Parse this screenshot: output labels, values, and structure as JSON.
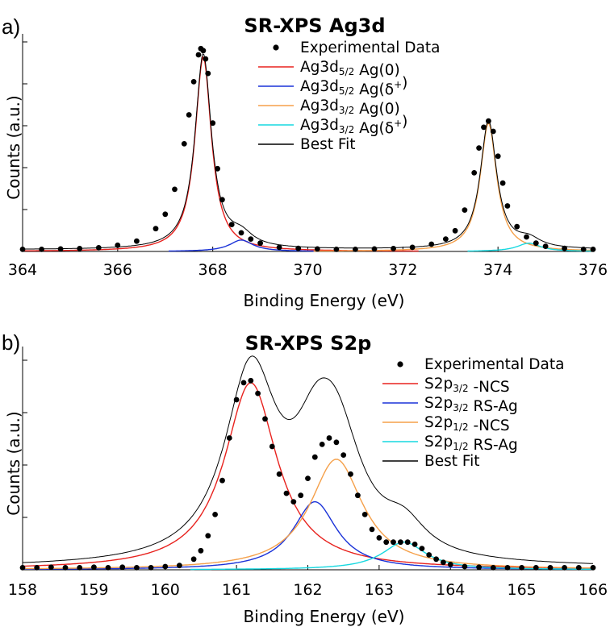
{
  "chart_data": [
    {
      "panel_label": "a)",
      "type": "line",
      "title": "SR-XPS Ag3d",
      "xlabel": "Binding Energy (eV)",
      "ylabel": "Counts (a.u.)",
      "xlim": [
        364,
        376
      ],
      "ylim": [
        0,
        1.02
      ],
      "x_ticks": [
        "364",
        "366",
        "368",
        "370",
        "372",
        "374",
        "376"
      ],
      "grid": false,
      "legend_position": "top-center",
      "legend": [
        {
          "kind": "dot",
          "color": "#000000",
          "parts": [
            {
              "t": "Experimental Data"
            }
          ]
        },
        {
          "kind": "line",
          "color": "#e8221e",
          "parts": [
            {
              "t": "Ag3d"
            },
            {
              "t": "5/2",
              "sub": true
            },
            {
              "t": " Ag(0)"
            }
          ]
        },
        {
          "kind": "line",
          "color": "#1a32d8",
          "parts": [
            {
              "t": "Ag3d"
            },
            {
              "t": "5/2",
              "sub": true
            },
            {
              "t": " Ag(δ"
            },
            {
              "t": "+",
              "sup": true
            },
            {
              "t": ")"
            }
          ]
        },
        {
          "kind": "line",
          "color": "#f5a04a",
          "parts": [
            {
              "t": "Ag3d"
            },
            {
              "t": "3/2",
              "sub": true
            },
            {
              "t": " Ag(0)"
            }
          ]
        },
        {
          "kind": "line",
          "color": "#16d8e0",
          "parts": [
            {
              "t": "Ag3d"
            },
            {
              "t": "3/2",
              "sub": true
            },
            {
              "t": " Ag(δ"
            },
            {
              "t": "+",
              "sup": true
            },
            {
              "t": ")"
            }
          ]
        },
        {
          "kind": "line",
          "color": "#000000",
          "parts": [
            {
              "t": "Best Fit"
            }
          ]
        }
      ],
      "series": [
        {
          "color": "#e8221e",
          "peak": {
            "center": 367.8,
            "height": 0.94,
            "fwhm": 0.42
          }
        },
        {
          "color": "#1a32d8",
          "peak": {
            "center": 368.6,
            "height": 0.055,
            "fwhm": 0.6
          }
        },
        {
          "color": "#f5a04a",
          "peak": {
            "center": 373.8,
            "height": 0.62,
            "fwhm": 0.42
          }
        },
        {
          "color": "#16d8e0",
          "peak": {
            "center": 374.65,
            "height": 0.04,
            "fwhm": 0.6
          }
        }
      ],
      "experimental": {
        "x": [
          364.0,
          364.4,
          364.8,
          365.2,
          365.6,
          366.0,
          366.4,
          366.8,
          367.0,
          367.2,
          367.4,
          367.5,
          367.6,
          367.7,
          367.75,
          367.8,
          367.85,
          367.9,
          368.0,
          368.1,
          368.2,
          368.4,
          368.6,
          368.8,
          369.0,
          369.4,
          369.8,
          370.2,
          370.6,
          371.0,
          371.4,
          371.8,
          372.2,
          372.6,
          372.9,
          373.1,
          373.3,
          373.5,
          373.6,
          373.7,
          373.8,
          373.9,
          374.0,
          374.1,
          374.2,
          374.4,
          374.6,
          374.8,
          375.0,
          375.4,
          375.8,
          376.0
        ],
        "y": [
          0.01,
          0.01,
          0.012,
          0.014,
          0.018,
          0.03,
          0.05,
          0.11,
          0.18,
          0.3,
          0.52,
          0.66,
          0.82,
          0.95,
          0.98,
          0.97,
          0.93,
          0.86,
          0.62,
          0.4,
          0.25,
          0.13,
          0.09,
          0.06,
          0.04,
          0.02,
          0.015,
          0.012,
          0.01,
          0.01,
          0.012,
          0.014,
          0.02,
          0.035,
          0.06,
          0.1,
          0.2,
          0.38,
          0.5,
          0.6,
          0.63,
          0.58,
          0.46,
          0.33,
          0.22,
          0.12,
          0.07,
          0.04,
          0.025,
          0.015,
          0.01,
          0.01
        ]
      }
    },
    {
      "panel_label": "b)",
      "type": "line",
      "title": "SR-XPS S2p",
      "xlabel": "Binding Energy (eV)",
      "ylabel": "Counts (a.u.)",
      "xlim": [
        158,
        166
      ],
      "ylim": [
        0,
        1.02
      ],
      "x_ticks": [
        "158",
        "159",
        "160",
        "161",
        "162",
        "163",
        "164",
        "165",
        "166"
      ],
      "grid": false,
      "legend_position": "top-right",
      "legend": [
        {
          "kind": "dot",
          "color": "#000000",
          "parts": [
            {
              "t": "Experimental Data"
            }
          ]
        },
        {
          "kind": "line",
          "color": "#e8221e",
          "parts": [
            {
              "t": "S2p"
            },
            {
              "t": "3/2",
              "sub": true
            },
            {
              "t": " -NCS"
            }
          ]
        },
        {
          "kind": "line",
          "color": "#1a32d8",
          "parts": [
            {
              "t": "S2p"
            },
            {
              "t": "3/2",
              "sub": true
            },
            {
              "t": " RS-Ag"
            }
          ]
        },
        {
          "kind": "line",
          "color": "#f5a04a",
          "parts": [
            {
              "t": "S2p"
            },
            {
              "t": "1/2",
              "sub": true
            },
            {
              "t": " -NCS"
            }
          ]
        },
        {
          "kind": "line",
          "color": "#16d8e0",
          "parts": [
            {
              "t": "S2p"
            },
            {
              "t": "1/2",
              "sub": true
            },
            {
              "t": " RS-Ag"
            }
          ]
        },
        {
          "kind": "line",
          "color": "#000000",
          "parts": [
            {
              "t": "Best Fit"
            }
          ]
        }
      ],
      "series": [
        {
          "color": "#e8221e",
          "peak": {
            "center": 161.2,
            "height": 0.88,
            "fwhm": 0.9
          }
        },
        {
          "color": "#1a32d8",
          "peak": {
            "center": 162.1,
            "height": 0.32,
            "fwhm": 0.75
          }
        },
        {
          "color": "#f5a04a",
          "peak": {
            "center": 162.4,
            "height": 0.52,
            "fwhm": 0.9
          }
        },
        {
          "color": "#16d8e0",
          "peak": {
            "center": 163.35,
            "height": 0.13,
            "fwhm": 0.75
          }
        }
      ],
      "experimental": {
        "x": [
          158.0,
          158.2,
          158.4,
          158.6,
          158.8,
          159.0,
          159.2,
          159.4,
          159.6,
          159.8,
          160.0,
          160.2,
          160.4,
          160.5,
          160.6,
          160.7,
          160.8,
          160.9,
          161.0,
          161.1,
          161.2,
          161.3,
          161.4,
          161.5,
          161.6,
          161.7,
          161.8,
          161.9,
          162.0,
          162.1,
          162.2,
          162.3,
          162.4,
          162.5,
          162.6,
          162.7,
          162.8,
          162.9,
          163.0,
          163.1,
          163.2,
          163.3,
          163.4,
          163.5,
          163.6,
          163.7,
          163.8,
          163.9,
          164.0,
          164.2,
          164.4,
          164.6,
          164.8,
          165.0,
          165.2,
          165.4,
          165.6,
          165.8,
          166.0
        ],
        "y": [
          0.01,
          0.01,
          0.012,
          0.01,
          0.01,
          0.012,
          0.01,
          0.012,
          0.01,
          0.01,
          0.015,
          0.02,
          0.05,
          0.09,
          0.16,
          0.26,
          0.42,
          0.62,
          0.8,
          0.88,
          0.89,
          0.83,
          0.71,
          0.58,
          0.45,
          0.36,
          0.32,
          0.35,
          0.43,
          0.53,
          0.59,
          0.62,
          0.6,
          0.54,
          0.45,
          0.35,
          0.26,
          0.19,
          0.15,
          0.13,
          0.13,
          0.13,
          0.13,
          0.12,
          0.1,
          0.07,
          0.05,
          0.035,
          0.025,
          0.015,
          0.012,
          0.01,
          0.01,
          0.01,
          0.01,
          0.01,
          0.01,
          0.01,
          0.01
        ]
      }
    }
  ]
}
